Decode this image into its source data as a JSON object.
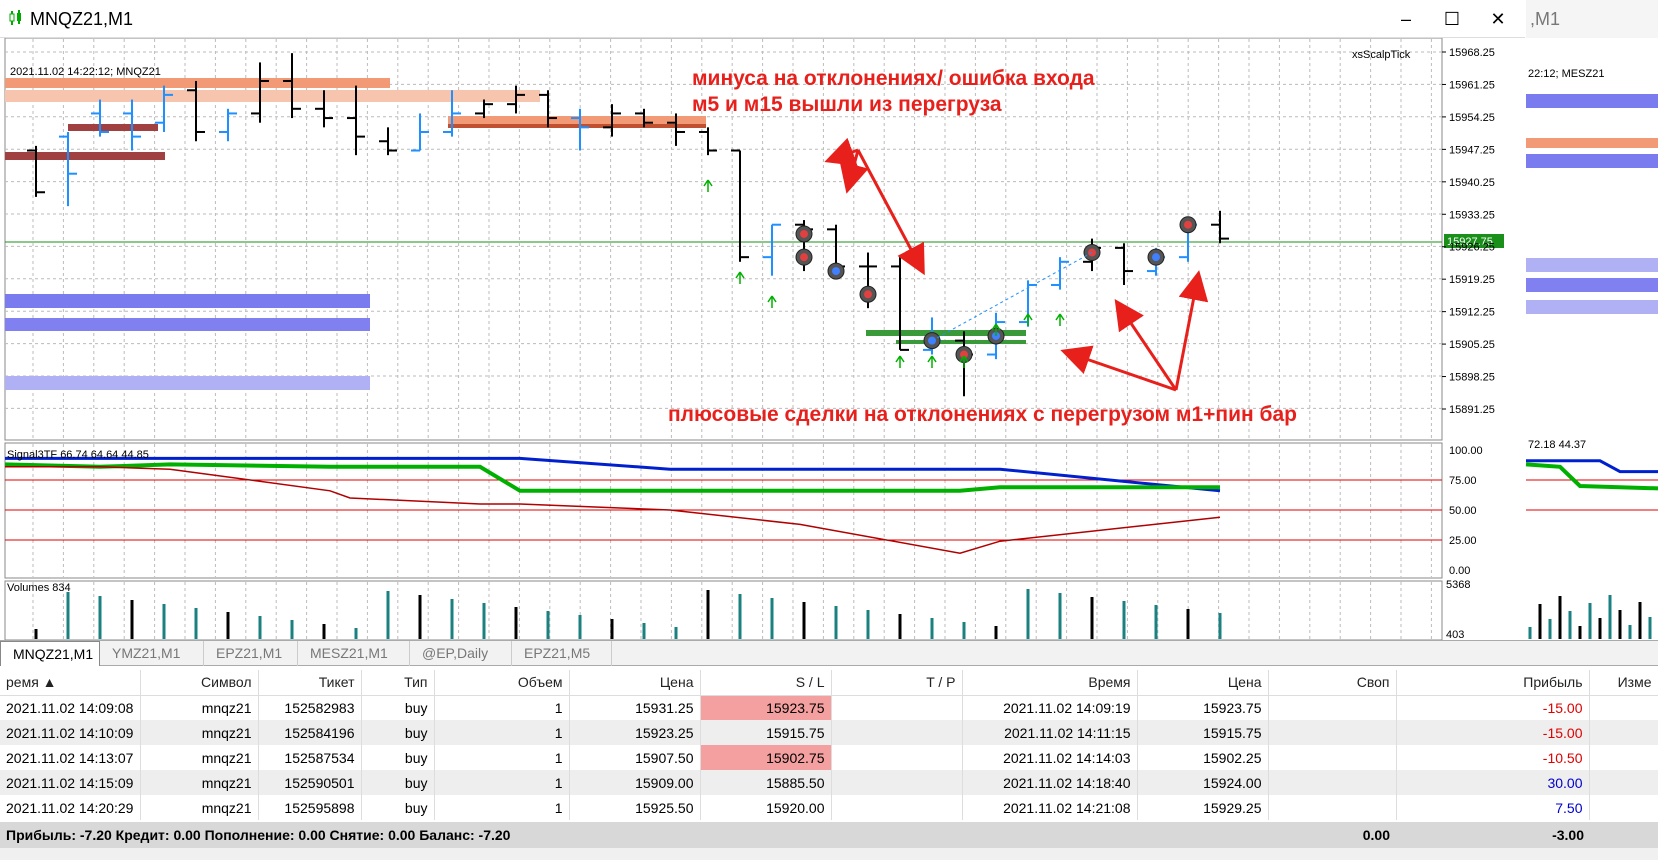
{
  "window": {
    "title": "MNQZ21,M1",
    "second_title": ",M1"
  },
  "chart": {
    "info": "2021.11.02 14:22:12; MNQZ21",
    "indicator_label": "xsScalpTick",
    "current_price": "15927.75",
    "price_ticks": [
      "15968.25",
      "15961.25",
      "15954.25",
      "15947.25",
      "15940.25",
      "15933.25",
      "15926.25",
      "15919.25",
      "15912.25",
      "15905.25",
      "15898.25",
      "15891.25"
    ],
    "signal_label": "Signal3TF 66.74 64.64 44.85",
    "signal_ticks": [
      "100.00",
      "75.00",
      "50.00",
      "25.00",
      "0.00"
    ],
    "volumes_label": "Volumes 834",
    "volume_ticks": [
      "5368",
      "403"
    ],
    "right_info": "22:12; MESZ21",
    "right_signal_label": "72.18 44.37",
    "colors": {
      "buy": "#1e90ff",
      "supply_zone": "#f08060",
      "demand_zone": "#7b7bf0",
      "fast_line": "#00b000",
      "slow_line": "#0020d0",
      "red_line": "#b00000"
    }
  },
  "annotations": {
    "top_line1": "минуса на отклонениях/ ошибка входа",
    "top_line2": "м5 и м15 вышли из перегруза",
    "bottom": "плюсовые сделки на отклонениях с перегрузом м1+пин бар"
  },
  "tabs": [
    "MNQZ21,M1",
    "YMZ21,M1",
    "EPZ21,M1",
    "MESZ21,M1",
    "@EP,Daily",
    "EPZ21,M5"
  ],
  "table": {
    "headers": [
      "ремя",
      "Символ",
      "Тикет",
      "Тип",
      "Объем",
      "Цена",
      "S / L",
      "T / P",
      "Время",
      "Цена",
      "Своп",
      "Прибыль",
      "Изме"
    ],
    "rows": [
      [
        "2021.11.02 14:09:08",
        "mnqz21",
        "152582983",
        "buy",
        "1",
        "15931.25",
        "15923.75",
        "",
        "2021.11.02 14:09:19",
        "15923.75",
        "",
        "-15.00",
        ""
      ],
      [
        "2021.11.02 14:10:09",
        "mnqz21",
        "152584196",
        "buy",
        "1",
        "15923.25",
        "15915.75",
        "",
        "2021.11.02 14:11:15",
        "15915.75",
        "",
        "-15.00",
        ""
      ],
      [
        "2021.11.02 14:13:07",
        "mnqz21",
        "152587534",
        "buy",
        "1",
        "15907.50",
        "15902.75",
        "",
        "2021.11.02 14:14:03",
        "15902.25",
        "",
        "-10.50",
        ""
      ],
      [
        "2021.11.02 14:15:09",
        "mnqz21",
        "152590501",
        "buy",
        "1",
        "15909.00",
        "15885.50",
        "",
        "2021.11.02 14:18:40",
        "15924.00",
        "",
        "30.00",
        ""
      ],
      [
        "2021.11.02 14:20:29",
        "mnqz21",
        "152595898",
        "buy",
        "1",
        "15925.50",
        "15920.00",
        "",
        "2021.11.02 14:21:08",
        "15929.25",
        "",
        "7.50",
        ""
      ]
    ]
  },
  "footer": {
    "summary": "Прибыль: -7.20  Кредит: 0.00  Пополнение: 0.00  Снятие: 0.00  Баланс: -7.20",
    "swap_total": "0.00",
    "profit_total": "-3.00"
  }
}
